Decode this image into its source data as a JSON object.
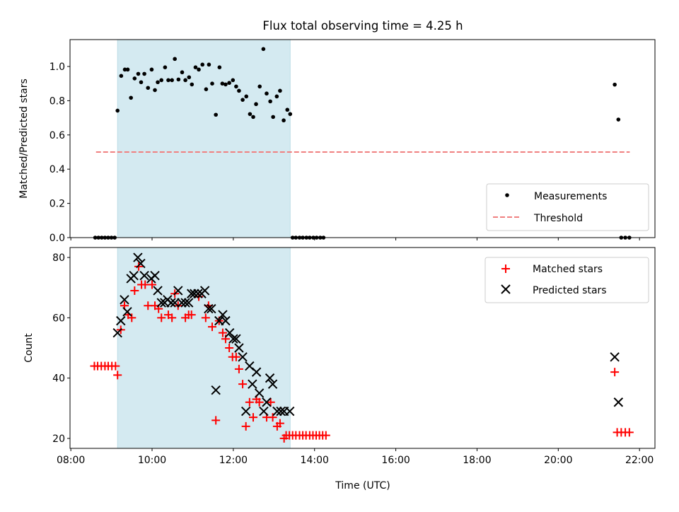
{
  "chart_data": [
    {
      "type": "scatter",
      "title": "Flux total observing time = 4.25 h",
      "xlabel": "",
      "ylabel": "Matched/Predicted stars",
      "xlim": [
        7.98,
        22.38
      ],
      "ylim": [
        0,
        1.157
      ],
      "yticks": [
        0,
        0.2,
        0.4,
        0.6,
        0.8,
        1.0
      ],
      "ytick_labels": [
        "0.0",
        "0.2",
        "0.4",
        "0.6",
        "0.8",
        "1.0"
      ],
      "shaded_span": [
        9.15,
        13.4
      ],
      "shade_color": "#d4eaf1",
      "legend_position": "lower-right",
      "series": [
        {
          "name": "Measurements",
          "marker": "dot",
          "color": "#000000",
          "x": [
            8.6,
            8.68,
            8.76,
            8.84,
            8.92,
            9.0,
            9.08,
            9.15,
            9.24,
            9.33,
            9.4,
            9.48,
            9.57,
            9.66,
            9.73,
            9.81,
            9.9,
            9.99,
            10.07,
            10.14,
            10.23,
            10.32,
            10.4,
            10.49,
            10.56,
            10.65,
            10.74,
            10.82,
            10.91,
            10.98,
            11.07,
            11.15,
            11.24,
            11.33,
            11.4,
            11.48,
            11.57,
            11.66,
            11.73,
            11.81,
            11.9,
            11.99,
            12.07,
            12.14,
            12.23,
            12.32,
            12.41,
            12.49,
            12.56,
            12.65,
            12.74,
            12.82,
            12.91,
            12.98,
            13.07,
            13.15,
            13.24,
            13.33,
            13.4,
            13.46,
            13.54,
            13.63,
            13.71,
            13.8,
            13.88,
            13.97,
            14.05,
            14.14,
            14.22,
            21.39,
            21.48,
            21.55,
            21.65,
            21.75
          ],
          "y": [
            0,
            0,
            0,
            0,
            0,
            0,
            0,
            0.742,
            0.945,
            0.982,
            0.982,
            0.817,
            0.93,
            0.957,
            0.908,
            0.957,
            0.875,
            0.982,
            0.862,
            0.908,
            0.92,
            0.995,
            0.92,
            0.92,
            1.044,
            0.924,
            0.966,
            0.92,
            0.937,
            0.895,
            0.995,
            0.982,
            1.011,
            0.867,
            1.011,
            0.9,
            0.718,
            0.995,
            0.9,
            0.895,
            0.904,
            0.92,
            0.883,
            0.858,
            0.805,
            0.825,
            0.722,
            0.705,
            0.78,
            0.883,
            1.102,
            0.842,
            0.796,
            0.705,
            0.825,
            0.858,
            0.685,
            0.747,
            0.722,
            0,
            0,
            0,
            0,
            0,
            0,
            0,
            0,
            0,
            0,
            0.894,
            0.69,
            0,
            0,
            0
          ]
        },
        {
          "name": "Threshold",
          "marker": "dashed-line",
          "color": "#f08080",
          "x": [
            8.62,
            21.76
          ],
          "y": [
            0.5,
            0.5
          ]
        }
      ]
    },
    {
      "type": "scatter",
      "title": "",
      "xlabel": "Time (UTC)",
      "ylabel": "Count",
      "xlim": [
        7.98,
        22.38
      ],
      "ylim": [
        16.7,
        83.3
      ],
      "xticks": [
        8,
        10,
        12,
        14,
        16,
        18,
        20,
        22
      ],
      "xtick_labels": [
        "08:00",
        "10:00",
        "12:00",
        "14:00",
        "16:00",
        "18:00",
        "20:00",
        "22:00"
      ],
      "yticks": [
        20,
        40,
        60,
        80
      ],
      "ytick_labels": [
        "20",
        "40",
        "60",
        "80"
      ],
      "shaded_span": [
        9.15,
        13.4
      ],
      "legend_position": "upper-right",
      "series": [
        {
          "name": "Matched stars",
          "marker": "plus",
          "color": "#ff0000",
          "x": [
            8.58,
            8.66,
            8.75,
            8.84,
            8.92,
            9.01,
            9.1,
            9.15,
            9.23,
            9.32,
            9.41,
            9.5,
            9.57,
            9.67,
            9.74,
            9.83,
            9.9,
            10.0,
            10.07,
            10.16,
            10.23,
            10.4,
            10.49,
            10.56,
            10.64,
            10.82,
            10.9,
            10.97,
            11.15,
            11.32,
            11.39,
            11.48,
            11.57,
            11.65,
            11.74,
            11.81,
            11.9,
            11.98,
            12.07,
            12.14,
            12.23,
            12.31,
            12.4,
            12.49,
            12.57,
            12.64,
            12.82,
            12.92,
            12.97,
            13.08,
            13.15,
            13.25,
            13.3,
            13.38,
            13.46,
            13.54,
            13.63,
            13.71,
            13.79,
            13.88,
            13.96,
            14.04,
            14.12,
            14.2,
            14.28,
            21.39,
            21.45,
            21.55,
            21.65,
            21.75
          ],
          "y": [
            44,
            44,
            44,
            44,
            44,
            44,
            44,
            41,
            56,
            64,
            61,
            60,
            69,
            77,
            71,
            71,
            64,
            71,
            64,
            63,
            60,
            61,
            60,
            68,
            64,
            60,
            61,
            61,
            67,
            60,
            64,
            57,
            26,
            59,
            55,
            53,
            50,
            47,
            47,
            43,
            38,
            24,
            32,
            27,
            33,
            32,
            27,
            32,
            27,
            24,
            25,
            20,
            21,
            21,
            21,
            21,
            21,
            21,
            21,
            21,
            21,
            21,
            21,
            21,
            21,
            42,
            22,
            22,
            22,
            22
          ]
        },
        {
          "name": "Predicted stars",
          "marker": "x",
          "color": "#000000",
          "x": [
            9.15,
            9.23,
            9.32,
            9.39,
            9.48,
            9.55,
            9.65,
            9.72,
            9.81,
            9.98,
            10.07,
            10.14,
            10.23,
            10.31,
            10.38,
            10.47,
            10.56,
            10.64,
            10.73,
            10.82,
            10.9,
            10.97,
            11.04,
            11.13,
            11.22,
            11.3,
            11.39,
            11.46,
            11.57,
            11.65,
            11.74,
            11.81,
            11.91,
            12.0,
            12.07,
            12.14,
            12.23,
            12.31,
            12.4,
            12.47,
            12.57,
            12.64,
            12.75,
            12.82,
            12.9,
            12.97,
            13.08,
            13.17,
            13.25,
            13.39,
            21.39,
            21.48
          ],
          "y": [
            55,
            59,
            66,
            62,
            73,
            74,
            80,
            78,
            74,
            73,
            74,
            69,
            65,
            65,
            66,
            65,
            65,
            69,
            65,
            65,
            65,
            68,
            68,
            68,
            68,
            69,
            63,
            63,
            36,
            59,
            61,
            59,
            55,
            53,
            53,
            50,
            47,
            29,
            44,
            38,
            42,
            35,
            29,
            32,
            40,
            38,
            29,
            29,
            29,
            29,
            47,
            32
          ]
        }
      ]
    }
  ]
}
